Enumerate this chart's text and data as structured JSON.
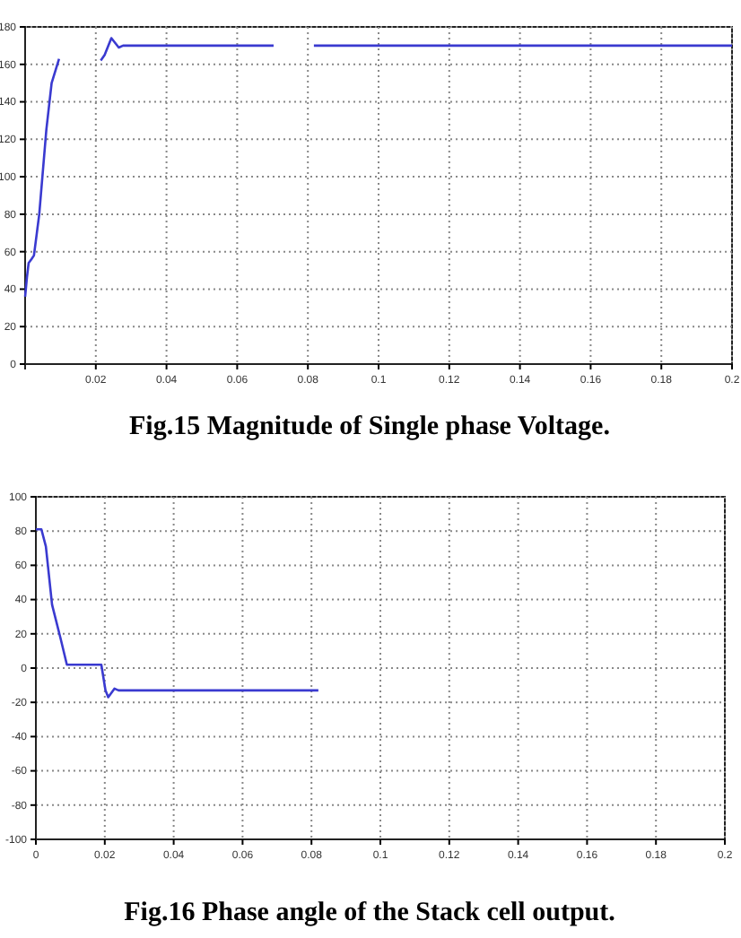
{
  "chart_data": [
    {
      "type": "line",
      "title": "Fig.15 Magnitude of Single phase Voltage.",
      "xlim": [
        0,
        0.2
      ],
      "xticks": [
        0.02,
        0.04,
        0.06,
        0.08,
        0.1,
        0.12,
        0.14,
        0.16,
        0.18,
        0.2
      ],
      "ylim": [
        0,
        180
      ],
      "yticks": [
        0,
        20,
        40,
        60,
        80,
        100,
        120,
        140,
        160,
        180
      ],
      "grid": true,
      "series": [
        {
          "color": "#3a3ad0",
          "x": [
            0,
            0.0005,
            0.001,
            0.0018,
            0.0025,
            0.004,
            0.006,
            0.0075,
            0.0096,
            0.015,
            0.0214,
            0.0225,
            0.0244,
            0.0265,
            0.0277,
            0.05,
            0.0703,
            0.076,
            0.0817,
            0.12,
            0.16,
            0.2
          ],
          "values": [
            36,
            46,
            54,
            56,
            58,
            80,
            125,
            150,
            163,
            null,
            162,
            165,
            174,
            169,
            170,
            170,
            170,
            null,
            170,
            170,
            170,
            170
          ]
        }
      ]
    },
    {
      "type": "line",
      "title": "Fig.16 Phase angle of the Stack cell output.",
      "xlim": [
        0,
        0.2
      ],
      "xticks": [
        0,
        0.02,
        0.04,
        0.06,
        0.08,
        0.1,
        0.12,
        0.14,
        0.16,
        0.18,
        0.2
      ],
      "ylim": [
        -100,
        100
      ],
      "yticks": [
        -100,
        -80,
        -60,
        -40,
        -20,
        0,
        20,
        40,
        60,
        80,
        100
      ],
      "grid": true,
      "series": [
        {
          "color": "#3a3ad0",
          "x": [
            0,
            0.0016,
            0.0029,
            0.0047,
            0.0072,
            0.009,
            0.012,
            0.019,
            0.0202,
            0.021,
            0.0228,
            0.024,
            0.04,
            0.06,
            0.082
          ],
          "values": [
            81,
            81,
            71,
            37,
            17,
            2,
            2,
            2,
            -13,
            -17,
            -12,
            -13,
            -13,
            -13,
            -13
          ]
        }
      ]
    }
  ]
}
